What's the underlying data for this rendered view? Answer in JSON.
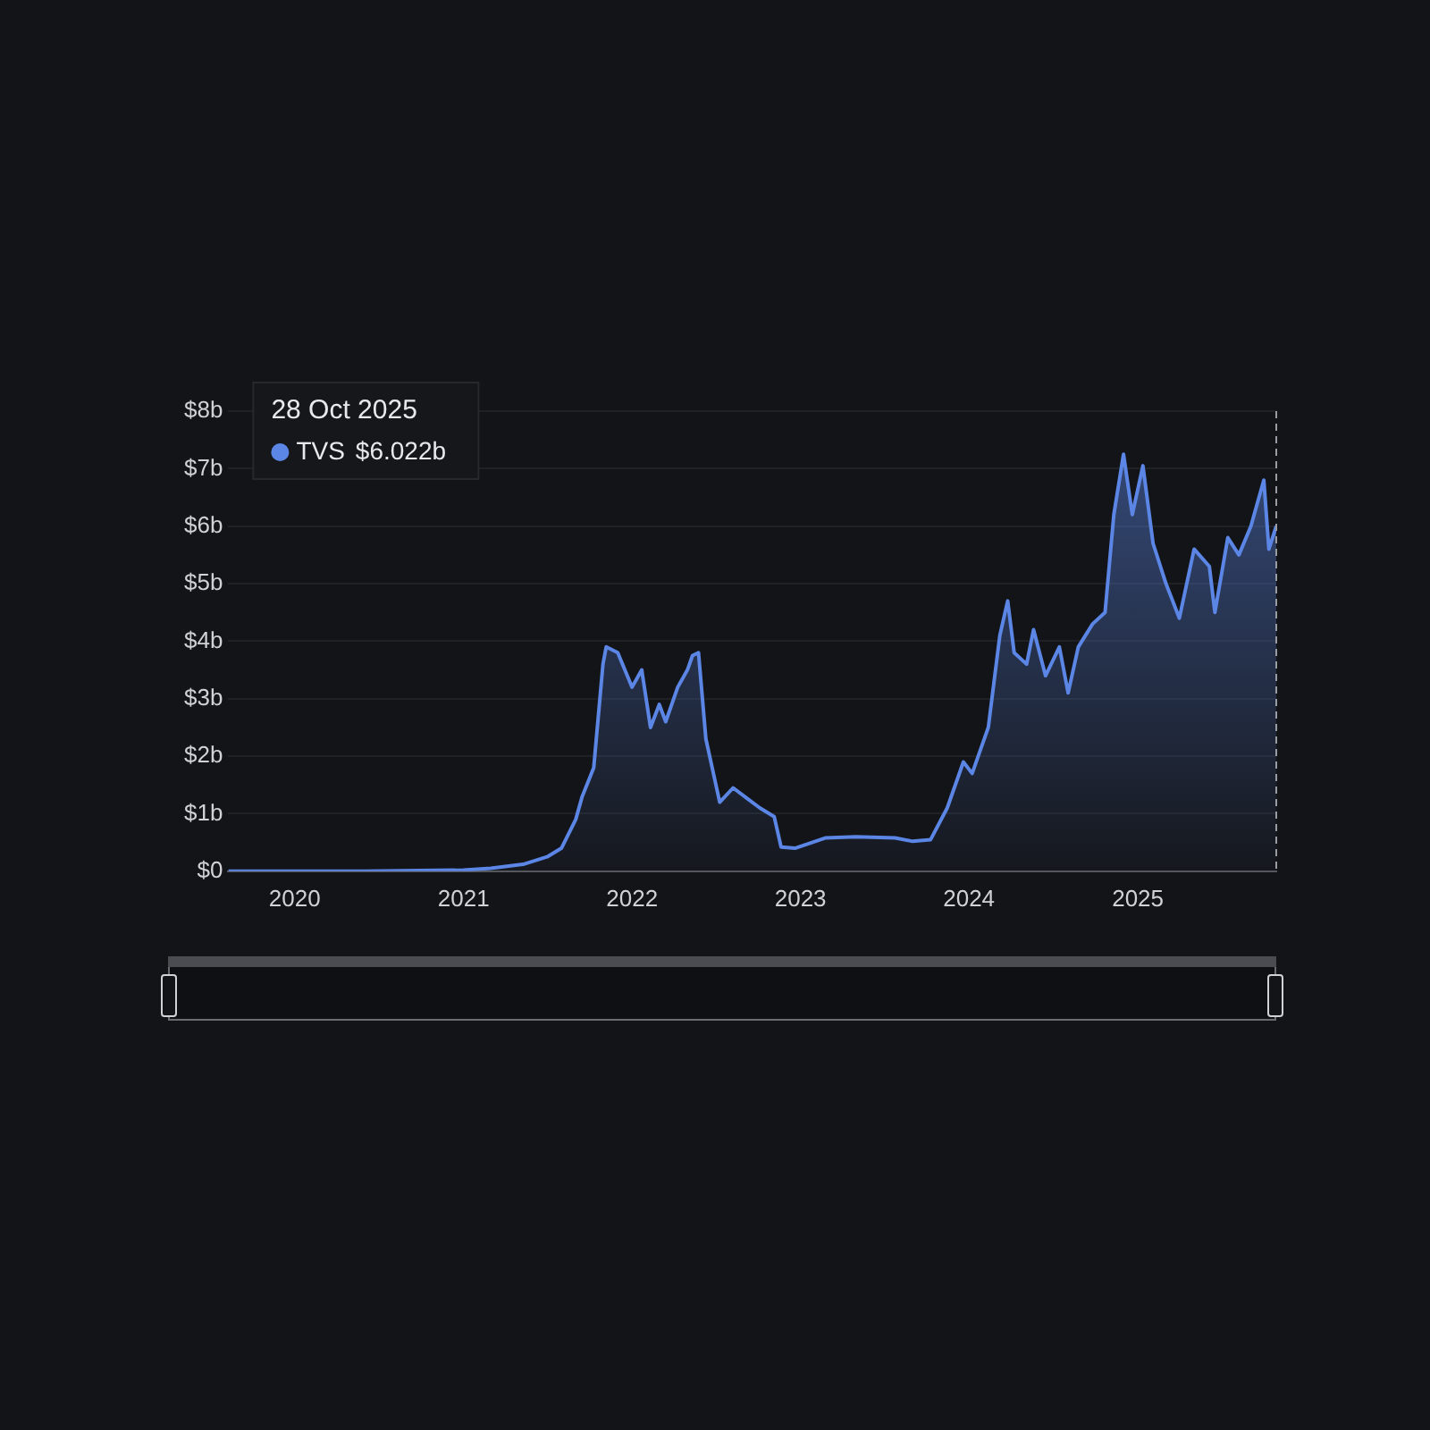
{
  "chart_data": {
    "type": "area",
    "x": [
      "2019-08-10",
      "2020-06-01",
      "2021-01-01",
      "2021-03-01",
      "2021-05-10",
      "2021-07-01",
      "2021-08-01",
      "2021-09-01",
      "2021-09-15",
      "2021-10-10",
      "2021-10-30",
      "2021-11-06",
      "2021-12-01",
      "2022-01-01",
      "2022-01-22",
      "2022-02-10",
      "2022-03-01",
      "2022-03-15",
      "2022-04-10",
      "2022-05-01",
      "2022-05-12",
      "2022-05-25",
      "2022-06-10",
      "2022-07-10",
      "2022-08-08",
      "2022-09-10",
      "2022-10-05",
      "2022-11-05",
      "2022-11-20",
      "2022-12-20",
      "2023-02-25",
      "2023-05-01",
      "2023-07-25",
      "2023-09-01",
      "2023-10-10",
      "2023-11-15",
      "2023-12-20",
      "2024-01-08",
      "2024-02-12",
      "2024-03-08",
      "2024-03-25",
      "2024-04-08",
      "2024-05-05",
      "2024-05-20",
      "2024-06-15",
      "2024-07-15",
      "2024-08-03",
      "2024-08-25",
      "2024-09-25",
      "2024-10-22",
      "2024-11-10",
      "2024-12-01",
      "2024-12-20",
      "2025-01-12",
      "2025-02-03",
      "2025-03-03",
      "2025-04-01",
      "2025-05-03",
      "2025-06-05",
      "2025-06-17",
      "2025-07-15",
      "2025-08-08",
      "2025-09-03",
      "2025-10-01",
      "2025-10-12",
      "2025-10-28"
    ],
    "series": [
      {
        "name": "TVS",
        "color": "#5b86e5",
        "values": [
          0,
          0,
          0.02,
          0.05,
          0.12,
          0.25,
          0.4,
          0.9,
          1.3,
          1.8,
          3.6,
          3.9,
          3.8,
          3.2,
          3.5,
          2.5,
          2.9,
          2.6,
          3.2,
          3.5,
          3.75,
          3.8,
          2.3,
          1.2,
          1.45,
          1.25,
          1.1,
          0.95,
          0.42,
          0.4,
          0.58,
          0.6,
          0.58,
          0.52,
          0.55,
          1.1,
          1.9,
          1.7,
          2.5,
          4.1,
          4.7,
          3.8,
          3.6,
          4.2,
          3.4,
          3.9,
          3.1,
          3.9,
          4.3,
          4.5,
          6.2,
          7.25,
          6.2,
          7.05,
          5.7,
          5.0,
          4.4,
          5.6,
          5.3,
          4.5,
          5.8,
          5.5,
          6.0,
          6.8,
          5.6,
          6.0
        ]
      }
    ],
    "xlim": [
      "2019-08-10",
      "2025-10-28"
    ],
    "xticks": [
      {
        "value": "2020",
        "label": "2020"
      },
      {
        "value": "2021",
        "label": "2021"
      },
      {
        "value": "2022",
        "label": "2022"
      },
      {
        "value": "2023",
        "label": "2023"
      },
      {
        "value": "2024",
        "label": "2024"
      },
      {
        "value": "2025",
        "label": "2025"
      }
    ],
    "ylim": [
      0,
      8
    ],
    "yticks": [
      {
        "value": 0,
        "label": "$0"
      },
      {
        "value": 1,
        "label": "$1b"
      },
      {
        "value": 2,
        "label": "$2b"
      },
      {
        "value": 3,
        "label": "$3b"
      },
      {
        "value": 4,
        "label": "$4b"
      },
      {
        "value": 5,
        "label": "$5b"
      },
      {
        "value": 6,
        "label": "$6b"
      },
      {
        "value": 7,
        "label": "$7b"
      },
      {
        "value": 8,
        "label": "$8b"
      }
    ],
    "ref_lines": [
      {
        "axis": "x",
        "value": "2025-10-28",
        "color": "#9a9ca3",
        "line_style": "dashed"
      }
    ],
    "annotations": [
      "28 Oct 2025",
      "$6.022b"
    ],
    "grid": "y",
    "legend": "top left"
  }
}
